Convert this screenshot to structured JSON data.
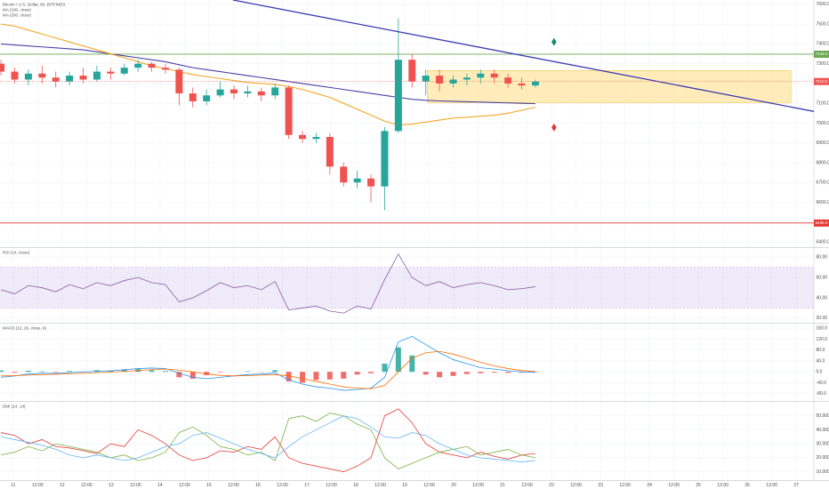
{
  "chart_data": [
    {
      "type": "candlestick",
      "title": "Bitcoin / U.S. Dollar, 60, BITFINEX",
      "grid": true,
      "xlim": [
        10.73,
        27.36
      ],
      "ylim": [
        6373,
        7622
      ],
      "xticks": [
        11,
        {
          "value": 11.5,
          "label": "12:00"
        },
        12,
        {
          "value": 12.5,
          "label": "12:00"
        },
        13,
        {
          "value": 13.5,
          "label": "12:00"
        },
        14,
        {
          "value": 14.5,
          "label": "12:00"
        },
        15,
        {
          "value": 15.5,
          "label": "12:00"
        },
        16,
        {
          "value": 16.5,
          "label": "12:00"
        },
        17,
        {
          "value": 17.5,
          "label": "12:00"
        },
        18,
        {
          "value": 18.5,
          "label": "12:00"
        },
        19,
        {
          "value": 19.5,
          "label": "12:00"
        },
        20,
        {
          "value": 20.5,
          "label": "12:00"
        },
        21,
        {
          "value": 21.5,
          "label": "12:00"
        },
        22,
        {
          "value": 22.5,
          "label": "12:00"
        },
        23,
        {
          "value": 23.5,
          "label": "12:00"
        },
        24,
        {
          "value": 24.5,
          "label": "12:00"
        },
        25,
        {
          "value": 25.5,
          "label": "12:00"
        },
        26,
        {
          "value": 26.5,
          "label": "12:00"
        },
        27
      ],
      "yticks": [
        {
          "value": 6400,
          "label": "6400.0"
        },
        {
          "value": 6500,
          "label": "6500.0"
        },
        {
          "value": 6600,
          "label": "6600.0"
        },
        {
          "value": 6700,
          "label": "6700.0"
        },
        {
          "value": 6800,
          "label": "6800.0"
        },
        {
          "value": 6900,
          "label": "6900.0"
        },
        {
          "value": 7000,
          "label": "7000.0"
        },
        {
          "value": 7100,
          "label": "7100.0"
        },
        {
          "value": 7200,
          "label": "7200.0"
        },
        {
          "value": 7300,
          "label": "7300.0"
        },
        {
          "value": 7400,
          "label": "7400.0"
        },
        {
          "value": 7500,
          "label": "7500.0"
        },
        {
          "value": 7600,
          "label": "7600.0"
        }
      ],
      "up_color": "#26a69a",
      "down_color": "#ef5350",
      "x": [
        10.75,
        11.03,
        11.31,
        11.59,
        11.87,
        12.15,
        12.43,
        12.71,
        12.99,
        13.27,
        13.55,
        13.83,
        14.11,
        14.39,
        14.67,
        14.95,
        15.23,
        15.51,
        15.79,
        16.07,
        16.35,
        16.63,
        16.91,
        17.19,
        17.47,
        17.75,
        18.03,
        18.31,
        18.59,
        18.87,
        19.15,
        19.43,
        19.71,
        19.99,
        20.27,
        20.55,
        20.83,
        21.11,
        21.39,
        21.67
      ],
      "open": [
        7300,
        7260,
        7220,
        7250,
        7230,
        7210,
        7240,
        7220,
        7260,
        7250,
        7280,
        7300,
        7280,
        7270,
        7150,
        7110,
        7140,
        7170,
        7150,
        7160,
        7140,
        7180,
        6940,
        6920,
        6930,
        6780,
        6700,
        6720,
        6680,
        6960,
        7320,
        7210,
        7240,
        7200,
        7220,
        7230,
        7250,
        7230,
        7200,
        7190
      ],
      "high": [
        7320,
        7280,
        7270,
        7290,
        7260,
        7260,
        7280,
        7290,
        7280,
        7300,
        7320,
        7310,
        7300,
        7280,
        7180,
        7170,
        7210,
        7190,
        7190,
        7180,
        7200,
        7190,
        6960,
        6950,
        6950,
        6800,
        6760,
        6740,
        6980,
        7530,
        7350,
        7270,
        7270,
        7240,
        7250,
        7270,
        7270,
        7250,
        7230,
        7220
      ],
      "low": [
        7240,
        7200,
        7190,
        7200,
        7180,
        7190,
        7200,
        7210,
        7220,
        7240,
        7260,
        7260,
        7250,
        7090,
        7080,
        7090,
        7130,
        7120,
        7130,
        7110,
        7120,
        6920,
        6900,
        6900,
        6740,
        6680,
        6670,
        6600,
        6560,
        6950,
        7180,
        7140,
        7160,
        7180,
        7190,
        7200,
        7200,
        7180,
        7170,
        7180
      ],
      "close": [
        7260,
        7220,
        7250,
        7230,
        7210,
        7240,
        7220,
        7260,
        7250,
        7280,
        7300,
        7280,
        7270,
        7150,
        7110,
        7140,
        7170,
        7150,
        7160,
        7140,
        7180,
        6940,
        6920,
        6930,
        6780,
        6700,
        6720,
        6680,
        6960,
        7320,
        7210,
        7240,
        7200,
        7220,
        7230,
        7250,
        7230,
        7200,
        7190,
        7210
      ],
      "series": [
        {
          "name": "MA (100, close)",
          "color": "#4a3fa3",
          "values": [
            7400,
            7395,
            7390,
            7385,
            7380,
            7375,
            7370,
            7360,
            7350,
            7340,
            7330,
            7320,
            7310,
            7295,
            7280,
            7270,
            7260,
            7250,
            7240,
            7230,
            7220,
            7210,
            7200,
            7190,
            7180,
            7170,
            7160,
            7150,
            7140,
            7130,
            7120,
            7115,
            7112,
            7110,
            7108,
            7106,
            7104,
            7102,
            7100,
            7098
          ]
        },
        {
          "name": "MA (200, close)",
          "color": "#f5a623",
          "values": [
            7500,
            7490,
            7470,
            7450,
            7430,
            7410,
            7390,
            7370,
            7350,
            7330,
            7310,
            7290,
            7275,
            7260,
            7245,
            7235,
            7225,
            7215,
            7205,
            7200,
            7195,
            7185,
            7170,
            7150,
            7130,
            7100,
            7070,
            7040,
            7010,
            6990,
            6995,
            7005,
            7015,
            7025,
            7030,
            7035,
            7040,
            7050,
            7065,
            7080
          ]
        }
      ],
      "zone": {
        "x": [
          19.46,
          26.89
        ],
        "y": [
          7104,
          7266
        ],
        "fill": "#ffe6a3",
        "stroke": "#f4c542"
      },
      "trendline": {
        "x": [
          15.49,
          27.36
        ],
        "y": [
          7622,
          7059
        ],
        "color": "#3d3bb3"
      },
      "levels": [
        {
          "value": 7348,
          "label": "7348.0",
          "color": "#6aa84f"
        },
        {
          "value": 6495,
          "label": "6495.0",
          "color": "#e53935"
        }
      ],
      "last_price": {
        "value": 7210,
        "label": "7210.0",
        "color": "#ef5350"
      },
      "markers": [
        {
          "x": 22.05,
          "y": 7410,
          "color": "#1b8a6b"
        },
        {
          "x": 22.05,
          "y": 6978,
          "color": "#e53935"
        }
      ]
    },
    {
      "type": "line",
      "title": "RSI (14, close)",
      "grid": true,
      "ylim": [
        15.5,
        89
      ],
      "yticks": [
        {
          "value": 20,
          "label": "20.00"
        },
        {
          "value": 40,
          "label": "40.00"
        },
        {
          "value": 60,
          "label": "60.00"
        },
        {
          "value": 80,
          "label": "80.00"
        }
      ],
      "band": [
        30,
        70
      ],
      "band_color": "#7e57c2",
      "color": "#8e5ba8",
      "values": [
        48,
        44,
        52,
        50,
        46,
        53,
        49,
        55,
        52,
        57,
        60,
        55,
        53,
        36,
        40,
        47,
        55,
        50,
        52,
        48,
        56,
        28,
        30,
        32,
        27,
        25,
        32,
        29,
        58,
        83,
        60,
        52,
        56,
        50,
        53,
        55,
        52,
        48,
        49,
        51
      ]
    },
    {
      "type": "bar",
      "title": "MACD (12, 26, close, 9)",
      "grid": true,
      "ylim": [
        -107,
        177
      ],
      "yticks": [
        {
          "value": -80,
          "label": "-80.0"
        },
        {
          "value": -40,
          "label": "-40.0"
        },
        {
          "value": 0,
          "label": "0.0"
        },
        {
          "value": 40,
          "label": "40.0"
        },
        {
          "value": 80,
          "label": "80.0"
        },
        {
          "value": 120,
          "label": "120.0"
        },
        {
          "value": 160,
          "label": "160.0"
        }
      ],
      "up_color": "#26a69a",
      "down_color": "#ef5350",
      "values": [
        5,
        -3,
        4,
        2,
        -2,
        3,
        1,
        6,
        4,
        8,
        10,
        6,
        3,
        -20,
        -25,
        -12,
        -2,
        0,
        2,
        -1,
        6,
        -35,
        -40,
        -30,
        -28,
        -25,
        -10,
        -5,
        30,
        90,
        60,
        -10,
        -20,
        -15,
        -8,
        -5,
        -3,
        -4,
        -3,
        -2
      ],
      "series": [
        {
          "color": "#2196f3",
          "values": [
            -20,
            -15,
            -8,
            -5,
            -6,
            -3,
            0,
            2,
            4,
            8,
            12,
            14,
            12,
            -5,
            -20,
            -25,
            -20,
            -15,
            -10,
            -8,
            -4,
            -30,
            -45,
            -55,
            -60,
            -68,
            -65,
            -60,
            -20,
            110,
            130,
            100,
            70,
            45,
            30,
            15,
            10,
            4,
            0,
            -2
          ]
        },
        {
          "color": "#ff6d00",
          "values": [
            -15,
            -14,
            -12,
            -10,
            -9,
            -7,
            -5,
            -3,
            -1,
            2,
            5,
            8,
            10,
            6,
            0,
            -8,
            -13,
            -15,
            -14,
            -12,
            -10,
            -15,
            -25,
            -35,
            -45,
            -55,
            -60,
            -62,
            -50,
            0,
            50,
            70,
            75,
            65,
            50,
            35,
            22,
            12,
            5,
            1
          ]
        }
      ]
    },
    {
      "type": "line",
      "title": "DMI (14, 14)",
      "grid": true,
      "ylim": [
        4,
        60
      ],
      "yticks": [
        {
          "value": 10,
          "label": "10.000"
        },
        {
          "value": 20,
          "label": "20.000"
        },
        {
          "value": 30,
          "label": "30.000"
        },
        {
          "value": 40,
          "label": "40.000"
        },
        {
          "value": 50,
          "label": "50.000"
        }
      ],
      "series": [
        {
          "color": "#e53935",
          "values": [
            38,
            36,
            30,
            33,
            28,
            27,
            25,
            23,
            30,
            28,
            40,
            36,
            30,
            22,
            18,
            20,
            25,
            24,
            28,
            26,
            35,
            20,
            16,
            14,
            12,
            10,
            14,
            20,
            50,
            55,
            45,
            30,
            24,
            22,
            20,
            24,
            21,
            19,
            22,
            23
          ]
        },
        {
          "color": "#7cb342",
          "values": [
            22,
            24,
            28,
            25,
            30,
            28,
            26,
            24,
            20,
            22,
            18,
            20,
            24,
            38,
            42,
            36,
            28,
            26,
            22,
            24,
            18,
            48,
            50,
            46,
            52,
            50,
            44,
            40,
            20,
            12,
            16,
            20,
            24,
            26,
            28,
            22,
            24,
            26,
            22,
            20
          ]
        },
        {
          "color": "#64b5f6",
          "values": [
            35,
            33,
            31,
            29,
            26,
            22,
            20,
            22,
            20,
            18,
            20,
            24,
            28,
            30,
            36,
            38,
            34,
            30,
            26,
            23,
            20,
            28,
            35,
            40,
            45,
            50,
            48,
            42,
            35,
            34,
            38,
            36,
            30,
            26,
            22,
            20,
            19,
            18,
            17,
            18
          ]
        }
      ]
    }
  ]
}
